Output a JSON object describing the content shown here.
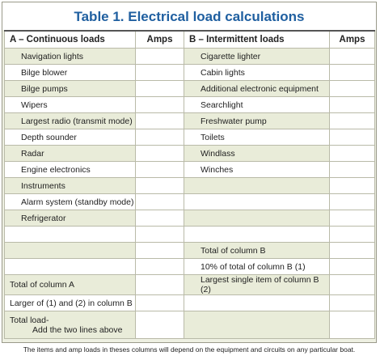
{
  "header": {
    "title": "Table 1. Electrical load calculations"
  },
  "table": {
    "columns": [
      "A – Continuous loads",
      "Amps",
      "B – Intermittent loads",
      "Amps"
    ],
    "rows": [
      [
        "Navigation lights",
        "Cigarette lighter"
      ],
      [
        "Bilge blower",
        "Cabin lights"
      ],
      [
        "Bilge pumps",
        "Additional electronic equipment"
      ],
      [
        "Wipers",
        "Searchlight"
      ],
      [
        "Largest radio (transmit mode)",
        "Freshwater pump"
      ],
      [
        "Depth sounder",
        "Toilets"
      ],
      [
        "Radar",
        "Windlass"
      ],
      [
        "Engine electronics",
        "Winches"
      ],
      [
        "Instruments",
        null
      ],
      [
        "Alarm system (standby mode)",
        null
      ],
      [
        "Refrigerator",
        null
      ],
      [
        null,
        null
      ],
      [
        null,
        "Total of column B"
      ],
      [
        null,
        "10% of total of column B (1)"
      ],
      [
        "Total of column A",
        "Largest single item of column B (2)"
      ],
      [
        "Larger of (1) and (2) in column B",
        null
      ],
      [
        [
          "Total load-",
          "Add the two lines above"
        ],
        null
      ]
    ]
  },
  "footer": {
    "note": "The items and amp loads in theses columns will depend on the equipment and circuits on any particular boat."
  }
}
